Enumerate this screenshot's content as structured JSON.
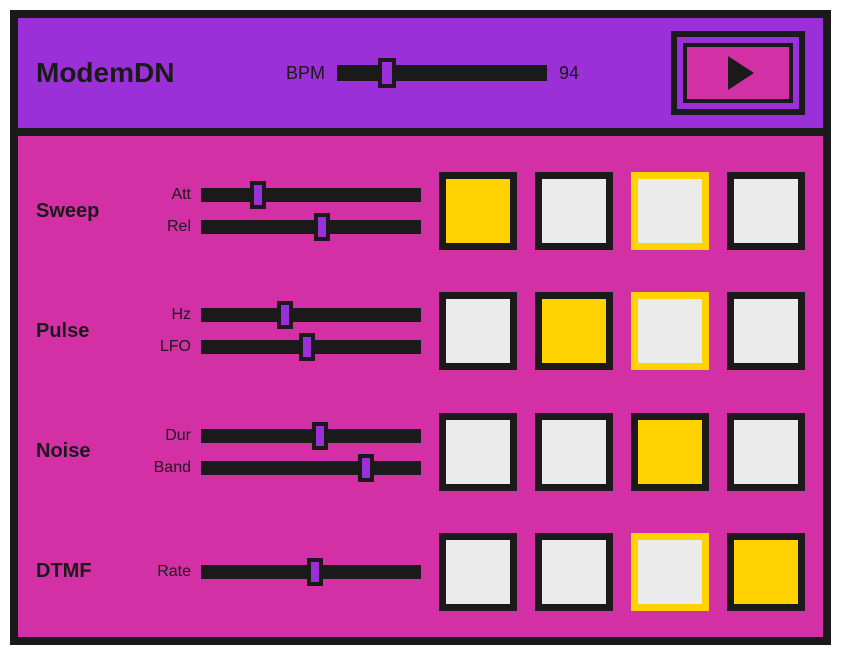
{
  "colors": {
    "frame": "#1a1a1a",
    "header_bg": "#9b30d9",
    "body_bg": "#d330a5",
    "step_off": "#ebebeb",
    "step_on": "#ffd200",
    "accent_border": "#ffd200",
    "thumb": "#9b30d9"
  },
  "header": {
    "title": "ModemDN",
    "bpm_label": "BPM",
    "bpm_value": "94",
    "bpm_slider_pct": 24
  },
  "tracks": [
    {
      "name": "Sweep",
      "params": [
        {
          "label": "Att",
          "pct": 26
        },
        {
          "label": "Rel",
          "pct": 55
        }
      ],
      "steps": [
        {
          "state": "on"
        },
        {
          "state": "off"
        },
        {
          "state": "accent"
        },
        {
          "state": "off"
        }
      ]
    },
    {
      "name": "Pulse",
      "params": [
        {
          "label": "Hz",
          "pct": 38
        },
        {
          "label": "LFO",
          "pct": 48
        }
      ],
      "steps": [
        {
          "state": "off"
        },
        {
          "state": "on"
        },
        {
          "state": "accent"
        },
        {
          "state": "off"
        }
      ]
    },
    {
      "name": "Noise",
      "params": [
        {
          "label": "Dur",
          "pct": 54
        },
        {
          "label": "Band",
          "pct": 75
        }
      ],
      "steps": [
        {
          "state": "off"
        },
        {
          "state": "off"
        },
        {
          "state": "on"
        },
        {
          "state": "off"
        }
      ]
    },
    {
      "name": "DTMF",
      "params": [
        {
          "label": "Rate",
          "pct": 52
        }
      ],
      "steps": [
        {
          "state": "off"
        },
        {
          "state": "off"
        },
        {
          "state": "accent"
        },
        {
          "state": "on"
        }
      ]
    }
  ]
}
